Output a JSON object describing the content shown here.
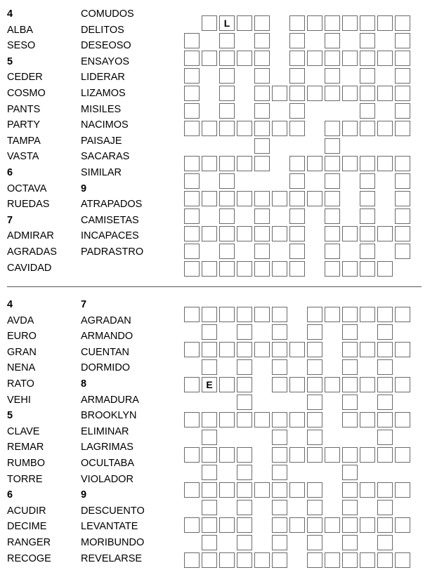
{
  "puzzles": [
    {
      "word_columns": [
        [
          {
            "t": "4",
            "h": true
          },
          {
            "t": "ALBA"
          },
          {
            "t": "SESO"
          },
          {
            "t": "5",
            "h": true
          },
          {
            "t": "CEDER"
          },
          {
            "t": "COSMO"
          },
          {
            "t": "PANTS"
          },
          {
            "t": "PARTY"
          },
          {
            "t": "TAMPA"
          },
          {
            "t": "VASTA"
          },
          {
            "t": "6",
            "h": true
          },
          {
            "t": "OCTAVA"
          },
          {
            "t": "RUEDAS"
          },
          {
            "t": "7",
            "h": true
          },
          {
            "t": "ADMIRAR"
          },
          {
            "t": "AGRADAS"
          },
          {
            "t": "CAVIDAD"
          }
        ],
        [
          {
            "t": "COMUDOS"
          },
          {
            "t": "DELITOS"
          },
          {
            "t": "DESEOSO"
          },
          {
            "t": "ENSAYOS"
          },
          {
            "t": "LIDERAR"
          },
          {
            "t": "LIZAMOS"
          },
          {
            "t": "MISILES"
          },
          {
            "t": "NACIMOS"
          },
          {
            "t": "PAISAJE"
          },
          {
            "t": "SACARAS"
          },
          {
            "t": "SIMILAR"
          },
          {
            "t": "9",
            "h": true
          },
          {
            "t": "ATRAPADOS"
          },
          {
            "t": "CAMISETAS"
          },
          {
            "t": "INCAPACES"
          },
          {
            "t": "PADRASTRO"
          }
        ]
      ],
      "grid": [
        ".XXXX.XXXXXXX",
        "X.X.X.X.X.X.X",
        "XXXXX.XXXXXXX",
        "X.X.X.X.X.X.X",
        "X.X.XXXXXXXXX",
        "X.X.X.X...X.X",
        "XXXXXXX.XXXXX",
        "....X...X....",
        "XXXXX.XXXXXXX",
        "X.X...X.X.X.X",
        "XXXXXXXXX.X.X",
        "X.X.X.X.X.X.X",
        "XXXXXXX.XXXXX",
        "X.X.X.X.X.X.X",
        "XXXXXXX.XXXX."
      ],
      "given_letters": [
        {
          "row": 0,
          "col": 2,
          "letter": "L"
        }
      ]
    },
    {
      "word_columns": [
        [
          {
            "t": "4",
            "h": true
          },
          {
            "t": "AVDA"
          },
          {
            "t": "EURO"
          },
          {
            "t": "GRAN"
          },
          {
            "t": "NENA"
          },
          {
            "t": "RATO"
          },
          {
            "t": "VEHI"
          },
          {
            "t": "5",
            "h": true
          },
          {
            "t": "CLAVE"
          },
          {
            "t": "REMAR"
          },
          {
            "t": "RUMBO"
          },
          {
            "t": "TORRE"
          },
          {
            "t": "6",
            "h": true
          },
          {
            "t": "ACUDIR"
          },
          {
            "t": "DECIME"
          },
          {
            "t": "RANGER"
          },
          {
            "t": "RECOGE"
          }
        ],
        [
          {
            "t": "7",
            "h": true
          },
          {
            "t": "AGRADAN"
          },
          {
            "t": "ARMANDO"
          },
          {
            "t": "CUENTAN"
          },
          {
            "t": "DORMIDO"
          },
          {
            "t": "8",
            "h": true
          },
          {
            "t": "ARMADURA"
          },
          {
            "t": "BROOKLYN"
          },
          {
            "t": "ELIMINAR"
          },
          {
            "t": "LAGRIMAS"
          },
          {
            "t": "OCULTABA"
          },
          {
            "t": "VIOLADOR"
          },
          {
            "t": "9",
            "h": true
          },
          {
            "t": "DESCUENTO"
          },
          {
            "t": "LEVANTATE"
          },
          {
            "t": "MORIBUNDO"
          },
          {
            "t": "REVELARSE"
          }
        ]
      ],
      "grid": [
        "XXXXXX.XXXXXX",
        ".X.X.X.X.X.X.",
        "XXXXXXXX.XXXX",
        ".X.X.X.X.X.X.",
        "XXXX.XXXXXXXX",
        "...X...X.X.X.",
        "XXXXXXXX.XXXX",
        ".X...X.X...X.",
        "XXXX.XXXXXXXX",
        ".X.X.X...X...",
        "XXXXXXXX.XXXX",
        ".X.X.X.X.X.X.",
        "XXXX.XXXXXXXX",
        ".X.X.X.X.X.X.",
        "XXXXXX.XXXXXX"
      ],
      "given_letters": [
        {
          "row": 4,
          "col": 1,
          "letter": "E"
        }
      ]
    }
  ]
}
